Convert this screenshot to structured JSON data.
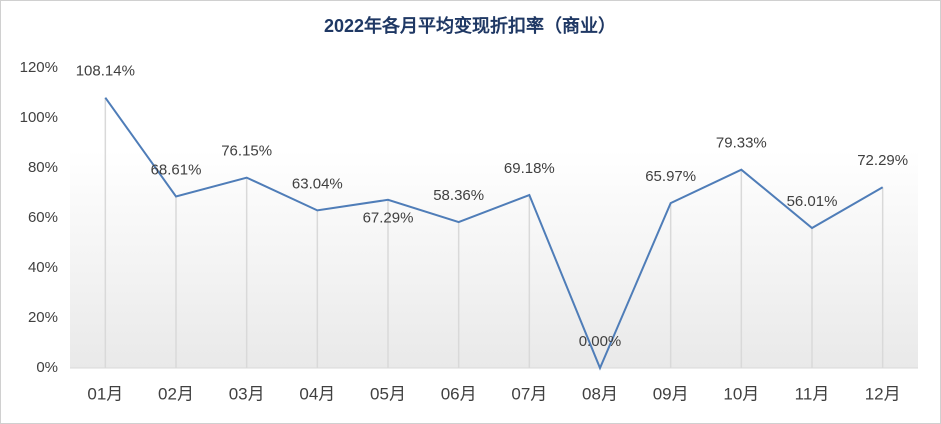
{
  "chart_data": {
    "type": "line",
    "title": "2022年各月平均变现折扣率（商业）",
    "categories": [
      "01月",
      "02月",
      "03月",
      "04月",
      "05月",
      "06月",
      "07月",
      "08月",
      "09月",
      "10月",
      "11月",
      "12月"
    ],
    "series": [
      {
        "color": "#4f7db8",
        "values": [
          108.14,
          68.61,
          76.15,
          63.04,
          67.29,
          58.36,
          69.18,
          0,
          65.97,
          79.33,
          56.01,
          72.29
        ],
        "value_labels": [
          "108.14%",
          "68.61%",
          "76.15%",
          "63.04%",
          "67.29%",
          "58.36%",
          "69.18%",
          "0.00%",
          "65.97%",
          "79.33%",
          "56.01%",
          "72.29%"
        ]
      }
    ],
    "ylim": [
      0,
      120
    ],
    "yticks": [
      {
        "value": 0,
        "label": "0%"
      },
      {
        "value": 20,
        "label": "20%"
      },
      {
        "value": 40,
        "label": "40%"
      },
      {
        "value": 60,
        "label": "60%"
      },
      {
        "value": 80,
        "label": "80%"
      },
      {
        "value": 100,
        "label": "100%"
      },
      {
        "value": 120,
        "label": "120%"
      }
    ]
  }
}
